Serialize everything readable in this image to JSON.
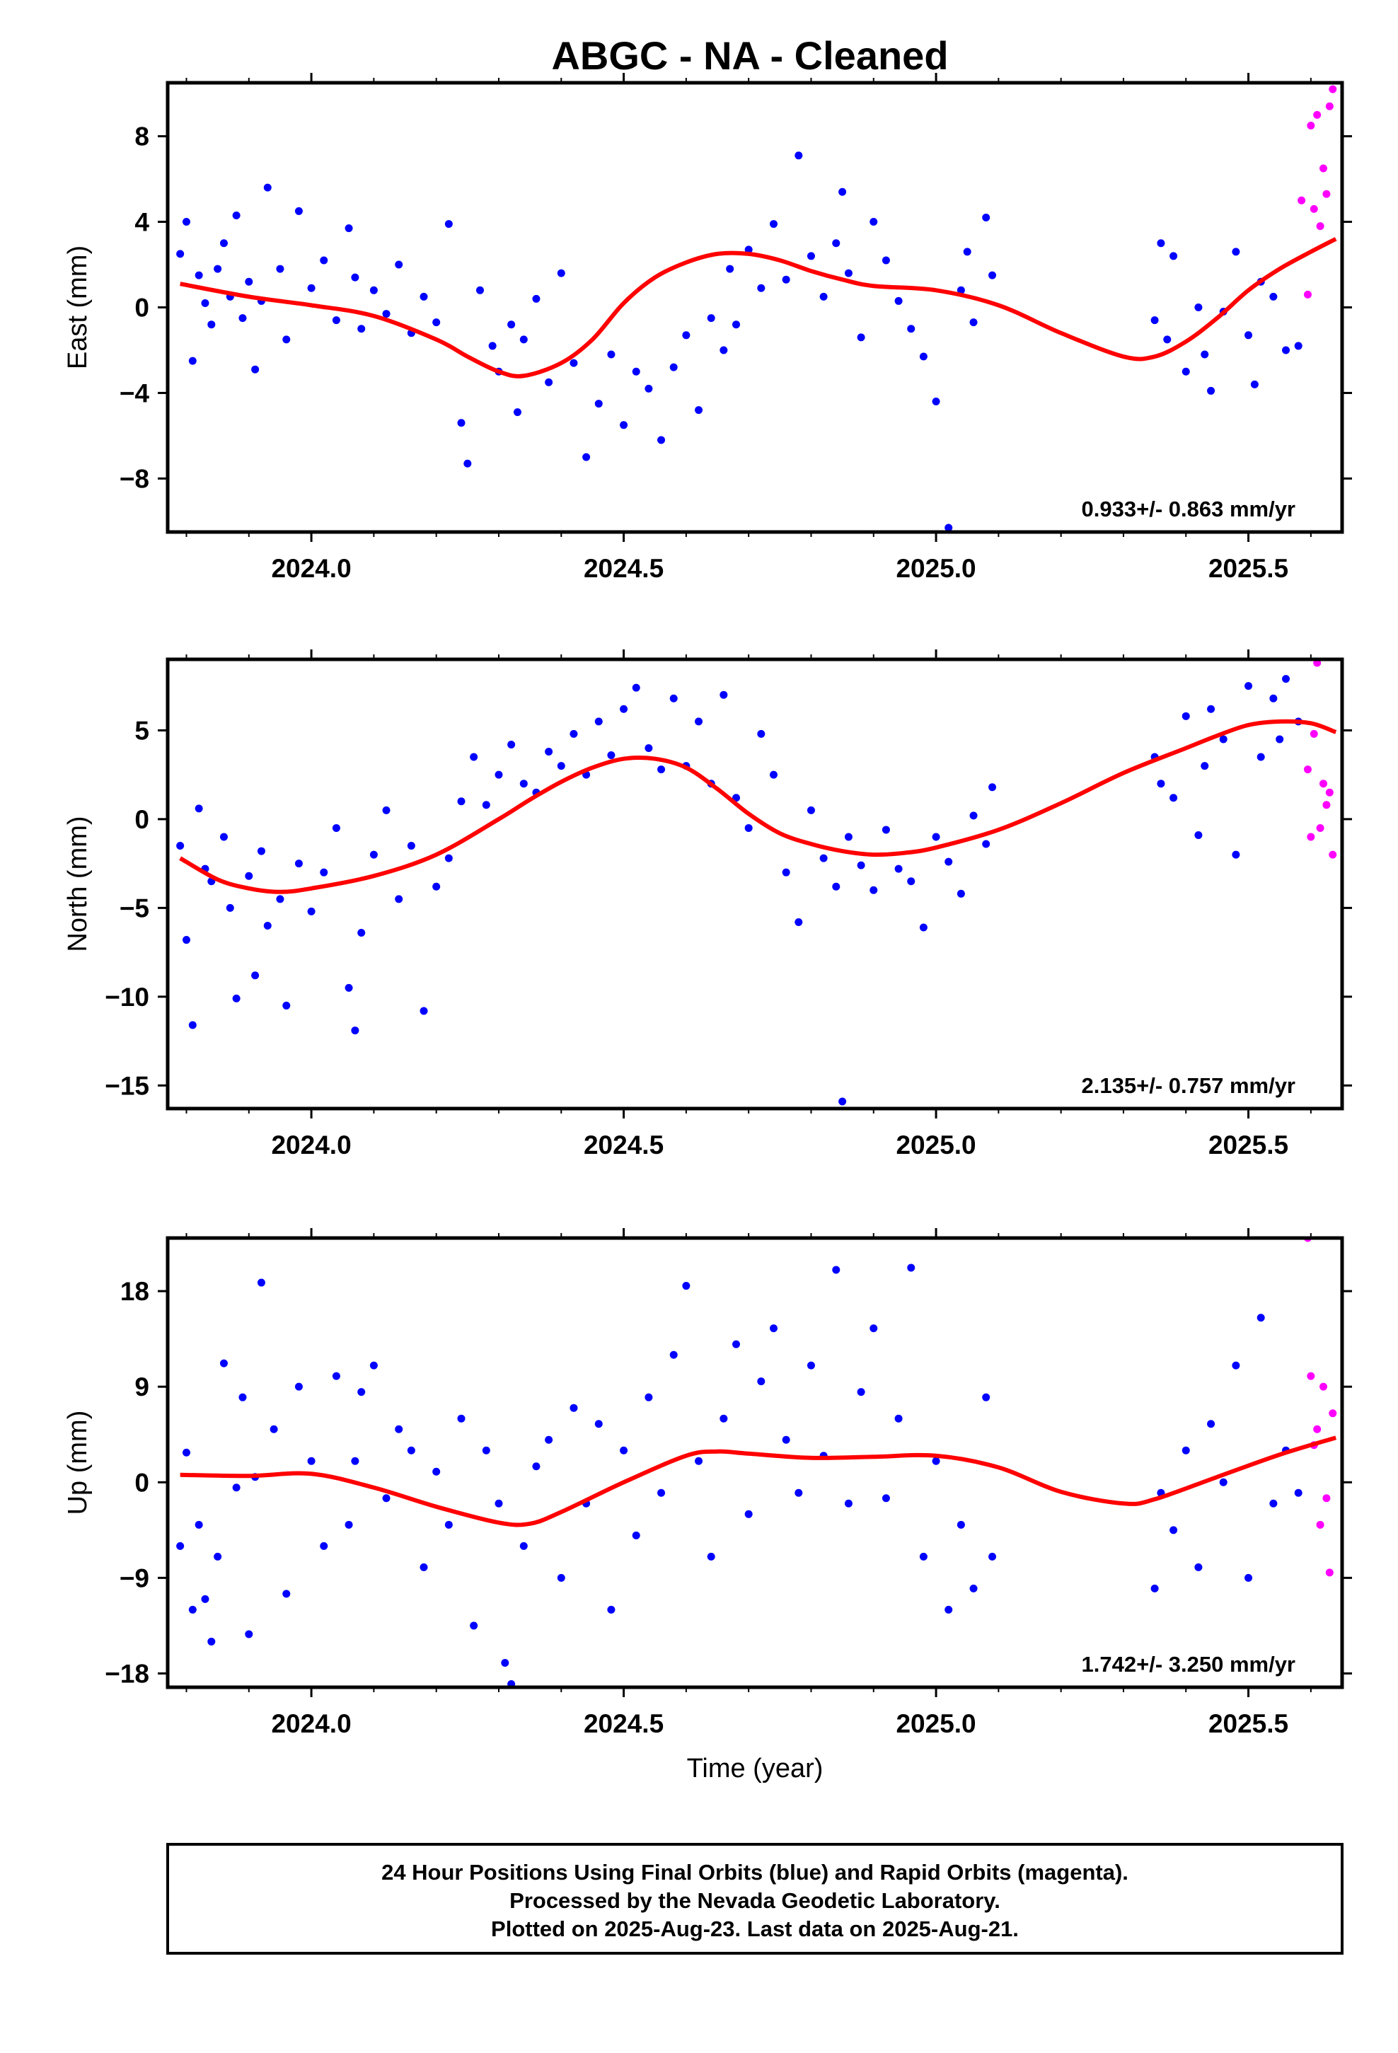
{
  "page": {
    "title": "ABGC  - NA - Cleaned"
  },
  "colors": {
    "final_orbits": "#0000ff",
    "rapid_orbits": "#ff00ff",
    "trend": "#ff0000",
    "frame": "#000000"
  },
  "footer": {
    "line1": "24 Hour Positions Using Final Orbits (blue) and Rapid Orbits (magenta).",
    "line2": "Processed by the Nevada Geodetic Laboratory.",
    "line3": "Plotted on 2025-Aug-23. Last data on 2025-Aug-21."
  },
  "chart_data": [
    {
      "type": "scatter",
      "title": "ABGC  - NA - Cleaned",
      "ylabel": "East (mm)",
      "xlabel": "",
      "rate_label": "0.933+/- 0.863 mm/yr",
      "xlim": [
        2023.77,
        2025.65
      ],
      "ylim": [
        -10.5,
        10.5
      ],
      "x_ticks": [
        {
          "value": 2024.0,
          "label": "2024.0"
        },
        {
          "value": 2024.5,
          "label": "2024.5"
        },
        {
          "value": 2025.0,
          "label": "2025.0"
        },
        {
          "value": 2025.5,
          "label": "2025.5"
        }
      ],
      "y_ticks": [
        {
          "value": 8,
          "label": "8"
        },
        {
          "value": 4,
          "label": "4"
        },
        {
          "value": 0,
          "label": "0"
        },
        {
          "value": -4,
          "label": "−4"
        },
        {
          "value": -8,
          "label": "−8"
        }
      ],
      "trend": {
        "x": [
          2023.79,
          2023.9,
          2024.0,
          2024.1,
          2024.2,
          2024.25,
          2024.3,
          2024.34,
          2024.4,
          2024.45,
          2024.5,
          2024.55,
          2024.6,
          2024.65,
          2024.7,
          2024.75,
          2024.8,
          2024.85,
          2024.9,
          2025.0,
          2025.1,
          2025.2,
          2025.3,
          2025.35,
          2025.4,
          2025.45,
          2025.5,
          2025.55,
          2025.6,
          2025.64
        ],
        "y": [
          1.1,
          0.5,
          0.1,
          -0.4,
          -1.5,
          -2.3,
          -3.0,
          -3.2,
          -2.6,
          -1.5,
          0.2,
          1.4,
          2.1,
          2.5,
          2.5,
          2.2,
          1.7,
          1.3,
          1.0,
          0.8,
          0.1,
          -1.2,
          -2.3,
          -2.3,
          -1.6,
          -0.5,
          0.8,
          1.8,
          2.6,
          3.2
        ]
      },
      "final_points": {
        "x": [
          2023.79,
          2023.8,
          2023.81,
          2023.82,
          2023.83,
          2023.84,
          2023.85,
          2023.86,
          2023.87,
          2023.88,
          2023.89,
          2023.9,
          2023.91,
          2023.92,
          2023.93,
          2023.95,
          2023.96,
          2023.98,
          2024.0,
          2024.02,
          2024.04,
          2024.06,
          2024.07,
          2024.08,
          2024.1,
          2024.12,
          2024.14,
          2024.16,
          2024.18,
          2024.2,
          2024.22,
          2024.24,
          2024.25,
          2024.27,
          2024.29,
          2024.3,
          2024.32,
          2024.33,
          2024.34,
          2024.36,
          2024.38,
          2024.4,
          2024.42,
          2024.44,
          2024.46,
          2024.48,
          2024.5,
          2024.52,
          2024.54,
          2024.56,
          2024.58,
          2024.6,
          2024.62,
          2024.64,
          2024.66,
          2024.67,
          2024.68,
          2024.7,
          2024.72,
          2024.74,
          2024.76,
          2024.78,
          2024.8,
          2024.82,
          2024.84,
          2024.85,
          2024.86,
          2024.88,
          2024.9,
          2024.92,
          2024.94,
          2024.96,
          2024.98,
          2025.0,
          2025.02,
          2025.04,
          2025.05,
          2025.06,
          2025.08,
          2025.09,
          2025.35,
          2025.36,
          2025.37,
          2025.38,
          2025.4,
          2025.42,
          2025.43,
          2025.44,
          2025.46,
          2025.48,
          2025.5,
          2025.51,
          2025.52,
          2025.54,
          2025.56,
          2025.58
        ],
        "y": [
          2.5,
          4.0,
          -2.5,
          1.5,
          0.2,
          -0.8,
          1.8,
          3.0,
          0.5,
          4.3,
          -0.5,
          1.2,
          -2.9,
          0.3,
          5.6,
          1.8,
          -1.5,
          4.5,
          0.9,
          2.2,
          -0.6,
          3.7,
          1.4,
          -1.0,
          0.8,
          -0.3,
          2.0,
          -1.2,
          0.5,
          -0.7,
          3.9,
          -5.4,
          -7.3,
          0.8,
          -1.8,
          -3.0,
          -0.8,
          -4.9,
          -1.5,
          0.4,
          -3.5,
          1.6,
          -2.6,
          -7.0,
          -4.5,
          -2.2,
          -5.5,
          -3.0,
          -3.8,
          -6.2,
          -2.8,
          -1.3,
          -4.8,
          -0.5,
          -2.0,
          1.8,
          -0.8,
          2.7,
          0.9,
          3.9,
          1.3,
          7.1,
          2.4,
          0.5,
          3.0,
          5.4,
          1.6,
          -1.4,
          4.0,
          2.2,
          0.3,
          -1.0,
          -2.3,
          -4.4,
          -10.3,
          0.8,
          2.6,
          -0.7,
          4.2,
          1.5,
          -0.6,
          3.0,
          -1.5,
          2.4,
          -3.0,
          0.0,
          -2.2,
          -3.9,
          -0.2,
          2.6,
          -1.3,
          -3.6,
          1.2,
          0.5,
          -2.0,
          -1.8
        ],
        "note": ""
      },
      "rapid_points": {
        "x": [
          2025.585,
          2025.595,
          2025.6,
          2025.605,
          2025.61,
          2025.615,
          2025.62,
          2025.625,
          2025.63,
          2025.635
        ],
        "y": [
          5.0,
          0.6,
          8.5,
          4.6,
          9.0,
          3.8,
          6.5,
          5.3,
          9.4,
          10.2
        ]
      }
    },
    {
      "type": "scatter",
      "title": "",
      "ylabel": "North (mm)",
      "xlabel": "",
      "rate_label": "2.135+/- 0.757 mm/yr",
      "xlim": [
        2023.77,
        2025.65
      ],
      "ylim": [
        -16.3,
        9.0
      ],
      "x_ticks": [
        {
          "value": 2024.0,
          "label": "2024.0"
        },
        {
          "value": 2024.5,
          "label": "2024.5"
        },
        {
          "value": 2025.0,
          "label": "2025.0"
        },
        {
          "value": 2025.5,
          "label": "2025.5"
        }
      ],
      "y_ticks": [
        {
          "value": 5,
          "label": "5"
        },
        {
          "value": 0,
          "label": "0"
        },
        {
          "value": -5,
          "label": "−5"
        },
        {
          "value": -10,
          "label": "−10"
        },
        {
          "value": -15,
          "label": "−15"
        }
      ],
      "trend": {
        "x": [
          2023.79,
          2023.85,
          2023.9,
          2023.95,
          2024.0,
          2024.1,
          2024.2,
          2024.3,
          2024.35,
          2024.4,
          2024.45,
          2024.5,
          2024.55,
          2024.6,
          2024.65,
          2024.7,
          2024.75,
          2024.8,
          2024.85,
          2024.9,
          2024.95,
          2025.0,
          2025.1,
          2025.2,
          2025.3,
          2025.4,
          2025.45,
          2025.5,
          2025.55,
          2025.6,
          2025.64
        ],
        "y": [
          -2.2,
          -3.4,
          -3.9,
          -4.1,
          -3.9,
          -3.2,
          -2.0,
          0.0,
          1.1,
          2.1,
          2.9,
          3.4,
          3.4,
          2.9,
          1.7,
          0.3,
          -0.8,
          -1.4,
          -1.8,
          -2.0,
          -1.9,
          -1.6,
          -0.6,
          0.9,
          2.6,
          4.0,
          4.7,
          5.3,
          5.5,
          5.4,
          4.9
        ]
      },
      "final_points": {
        "x": [
          2023.79,
          2023.8,
          2023.81,
          2023.82,
          2023.83,
          2023.84,
          2023.86,
          2023.87,
          2023.88,
          2023.9,
          2023.91,
          2023.92,
          2023.93,
          2023.95,
          2023.96,
          2023.98,
          2024.0,
          2024.02,
          2024.04,
          2024.06,
          2024.07,
          2024.08,
          2024.1,
          2024.12,
          2024.14,
          2024.16,
          2024.18,
          2024.2,
          2024.22,
          2024.24,
          2024.26,
          2024.28,
          2024.3,
          2024.32,
          2024.34,
          2024.36,
          2024.38,
          2024.4,
          2024.42,
          2024.44,
          2024.46,
          2024.48,
          2024.5,
          2024.52,
          2024.54,
          2024.56,
          2024.58,
          2024.6,
          2024.62,
          2024.64,
          2024.66,
          2024.68,
          2024.7,
          2024.72,
          2024.74,
          2024.76,
          2024.78,
          2024.8,
          2024.82,
          2024.84,
          2024.85,
          2024.86,
          2024.88,
          2024.9,
          2024.92,
          2024.94,
          2024.96,
          2024.98,
          2025.0,
          2025.02,
          2025.04,
          2025.06,
          2025.08,
          2025.09,
          2025.35,
          2025.36,
          2025.38,
          2025.4,
          2025.42,
          2025.43,
          2025.44,
          2025.46,
          2025.48,
          2025.5,
          2025.52,
          2025.54,
          2025.55,
          2025.56,
          2025.58
        ],
        "y": [
          -1.5,
          -6.8,
          -11.6,
          0.6,
          -2.8,
          -3.5,
          -1.0,
          -5.0,
          -10.1,
          -3.2,
          -8.8,
          -1.8,
          -6.0,
          -4.5,
          -10.5,
          -2.5,
          -5.2,
          -3.0,
          -0.5,
          -9.5,
          -11.9,
          -6.4,
          -2.0,
          0.5,
          -4.5,
          -1.5,
          -10.8,
          -3.8,
          -2.2,
          1.0,
          3.5,
          0.8,
          2.5,
          4.2,
          2.0,
          1.5,
          3.8,
          3.0,
          4.8,
          2.5,
          5.5,
          3.6,
          6.2,
          7.4,
          4.0,
          2.8,
          6.8,
          3.0,
          5.5,
          2.0,
          7.0,
          1.2,
          -0.5,
          4.8,
          2.5,
          -3.0,
          -5.8,
          0.5,
          -2.2,
          -3.8,
          -15.9,
          -1.0,
          -2.6,
          -4.0,
          -0.6,
          -2.8,
          -3.5,
          -6.1,
          -1.0,
          -2.4,
          -4.2,
          0.2,
          -1.4,
          1.8,
          3.5,
          2.0,
          1.2,
          5.8,
          -0.9,
          3.0,
          6.2,
          4.5,
          -2.0,
          7.5,
          3.5,
          6.8,
          4.5,
          7.9,
          5.5
        ],
        "note": ""
      },
      "rapid_points": {
        "x": [
          2025.595,
          2025.6,
          2025.605,
          2025.61,
          2025.615,
          2025.62,
          2025.625,
          2025.63,
          2025.635
        ],
        "y": [
          2.8,
          -1.0,
          4.8,
          8.8,
          -0.5,
          2.0,
          0.8,
          1.5,
          -2.0
        ]
      }
    },
    {
      "type": "scatter",
      "title": "",
      "ylabel": "Up (mm)",
      "xlabel": "Time (year)",
      "rate_label": "1.742+/- 3.250 mm/yr",
      "xlim": [
        2023.77,
        2025.65
      ],
      "ylim": [
        -19.3,
        23.0
      ],
      "x_ticks": [
        {
          "value": 2024.0,
          "label": "2024.0"
        },
        {
          "value": 2024.5,
          "label": "2024.5"
        },
        {
          "value": 2025.0,
          "label": "2025.0"
        },
        {
          "value": 2025.5,
          "label": "2025.5"
        }
      ],
      "y_ticks": [
        {
          "value": 18,
          "label": "18"
        },
        {
          "value": 9,
          "label": "9"
        },
        {
          "value": 0,
          "label": "0"
        },
        {
          "value": -9,
          "label": "−9"
        },
        {
          "value": -18,
          "label": "−18"
        }
      ],
      "trend": {
        "x": [
          2023.79,
          2023.9,
          2024.0,
          2024.1,
          2024.2,
          2024.3,
          2024.35,
          2024.4,
          2024.5,
          2024.6,
          2024.65,
          2024.7,
          2024.8,
          2024.9,
          2025.0,
          2025.1,
          2025.2,
          2025.3,
          2025.35,
          2025.45,
          2025.55,
          2025.64
        ],
        "y": [
          0.7,
          0.6,
          0.8,
          -0.5,
          -2.3,
          -3.8,
          -3.9,
          -2.8,
          0.0,
          2.5,
          2.9,
          2.7,
          2.3,
          2.4,
          2.5,
          1.4,
          -0.9,
          -2.0,
          -1.6,
          0.5,
          2.6,
          4.2
        ]
      },
      "final_points": {
        "x": [
          2023.79,
          2023.8,
          2023.81,
          2023.82,
          2023.83,
          2023.84,
          2023.85,
          2023.86,
          2023.88,
          2023.89,
          2023.9,
          2023.91,
          2023.92,
          2023.94,
          2023.96,
          2023.98,
          2024.0,
          2024.02,
          2024.04,
          2024.06,
          2024.07,
          2024.08,
          2024.1,
          2024.12,
          2024.14,
          2024.16,
          2024.18,
          2024.2,
          2024.22,
          2024.24,
          2024.26,
          2024.28,
          2024.3,
          2024.31,
          2024.32,
          2024.34,
          2024.36,
          2024.38,
          2024.4,
          2024.42,
          2024.44,
          2024.46,
          2024.48,
          2024.5,
          2024.52,
          2024.54,
          2024.56,
          2024.58,
          2024.6,
          2024.62,
          2024.64,
          2024.66,
          2024.68,
          2024.7,
          2024.72,
          2024.74,
          2024.76,
          2024.78,
          2024.8,
          2024.82,
          2024.84,
          2024.86,
          2024.88,
          2024.9,
          2024.92,
          2024.94,
          2024.96,
          2024.98,
          2025.0,
          2025.02,
          2025.04,
          2025.06,
          2025.08,
          2025.09,
          2025.35,
          2025.36,
          2025.38,
          2025.4,
          2025.42,
          2025.44,
          2025.46,
          2025.48,
          2025.5,
          2025.52,
          2025.54,
          2025.56,
          2025.58
        ],
        "y": [
          -6.0,
          2.8,
          -12.0,
          -4.0,
          -11.0,
          -15.0,
          -7.0,
          11.2,
          -0.5,
          8.0,
          -14.3,
          0.5,
          18.8,
          5.0,
          -10.5,
          9.0,
          2.0,
          -6.0,
          10.0,
          -4.0,
          2.0,
          8.5,
          11.0,
          -1.5,
          5.0,
          3.0,
          -8.0,
          1.0,
          -4.0,
          6.0,
          -13.5,
          3.0,
          -2.0,
          -17.0,
          -19.0,
          -6.0,
          1.5,
          4.0,
          -9.0,
          7.0,
          -2.0,
          5.5,
          -12.0,
          3.0,
          -5.0,
          8.0,
          -1.0,
          12.0,
          18.5,
          2.0,
          -7.0,
          6.0,
          13.0,
          -3.0,
          9.5,
          14.5,
          4.0,
          -1.0,
          11.0,
          2.5,
          20.0,
          -2.0,
          8.5,
          14.5,
          -1.5,
          6.0,
          20.2,
          -7.0,
          2.0,
          -12.0,
          -4.0,
          -10.0,
          8.0,
          -7.0,
          -10.0,
          -1.0,
          -4.5,
          3.0,
          -8.0,
          5.5,
          0.0,
          11.0,
          -9.0,
          15.5,
          -2.0,
          3.0,
          -1.0
        ],
        "note": ""
      },
      "rapid_points": {
        "x": [
          2025.595,
          2025.6,
          2025.605,
          2025.61,
          2025.615,
          2025.62,
          2025.625,
          2025.63,
          2025.635
        ],
        "y": [
          23.0,
          10.0,
          3.5,
          5.0,
          -4.0,
          9.0,
          -1.5,
          -8.5,
          6.5
        ]
      }
    }
  ]
}
